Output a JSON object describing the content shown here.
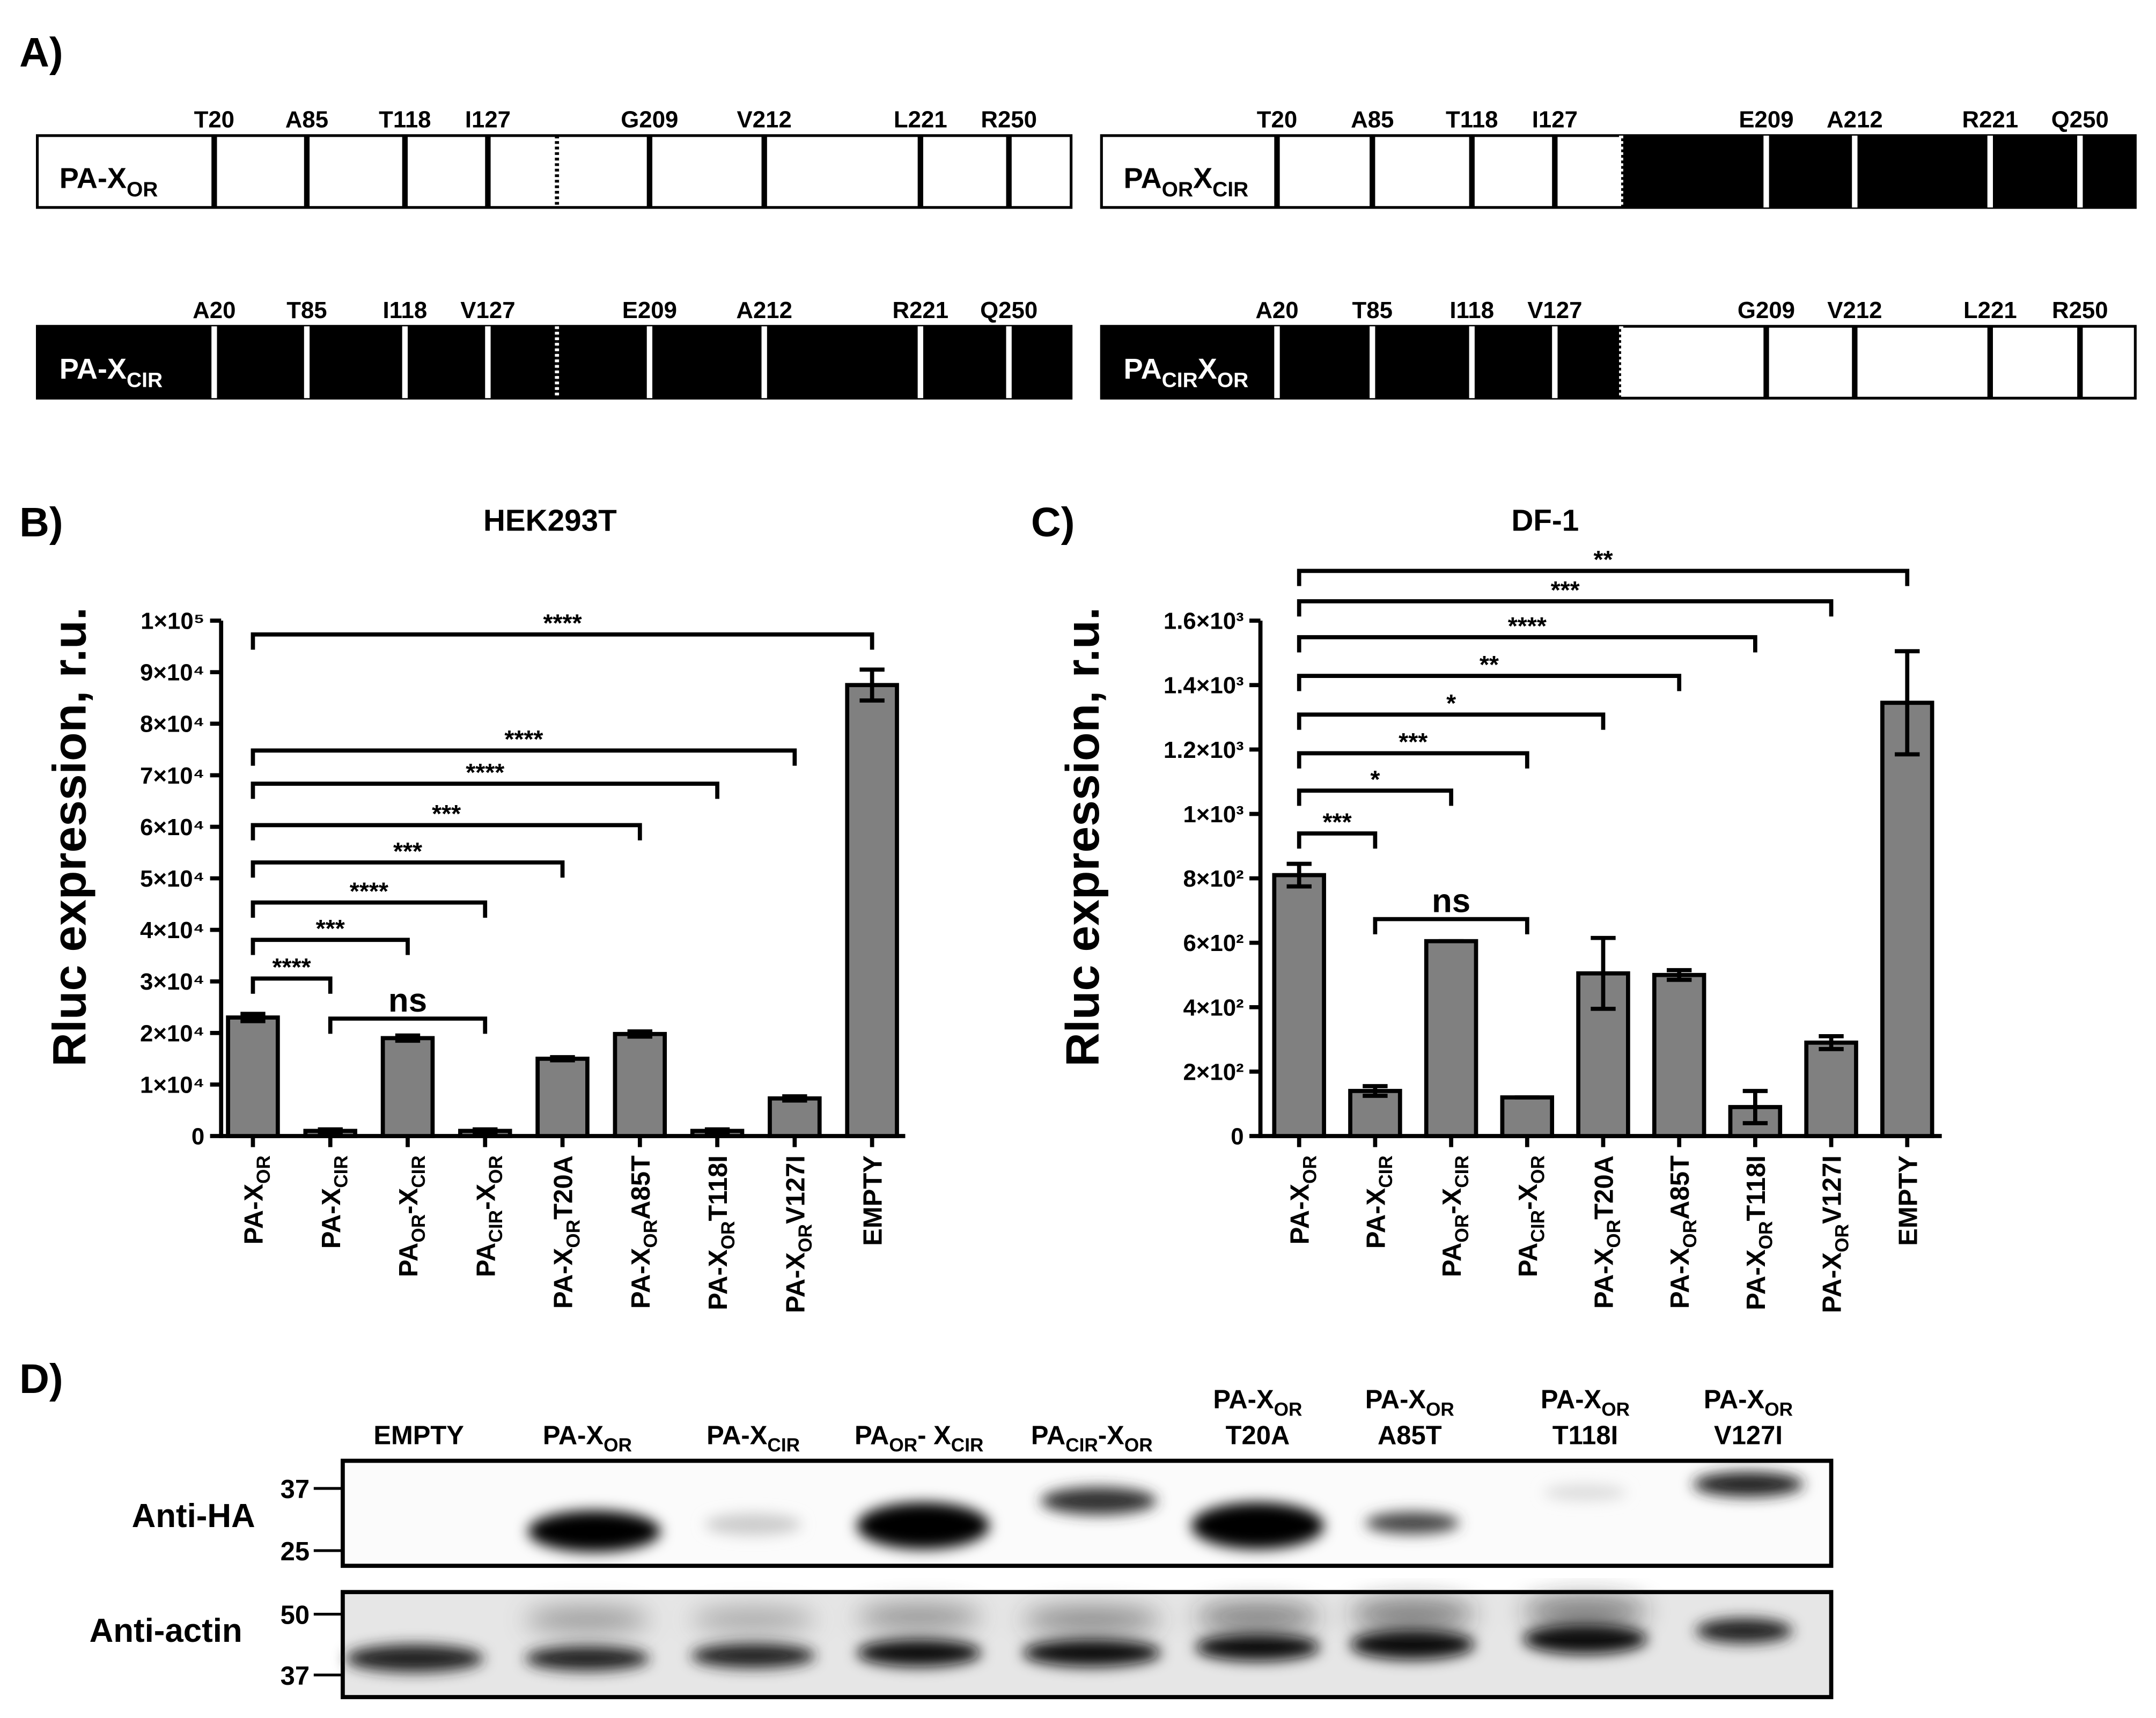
{
  "panel_a": {
    "letter": "A)",
    "constructs": [
      {
        "name": [
          "PA-X",
          "OR"
        ],
        "mutations": [
          "T20",
          "A85",
          "T118",
          "I127",
          "G209",
          "V212",
          "L221",
          "R250"
        ],
        "colors": [
          "#ffffff",
          "#ffffff"
        ]
      },
      {
        "name": [
          "PA",
          "OR",
          "X",
          "CIR"
        ],
        "mutations": [
          "T20",
          "A85",
          "T118",
          "I127",
          "E209",
          "A212",
          "R221",
          "Q250"
        ],
        "colors": [
          "#ffffff",
          "#000000"
        ]
      },
      {
        "name": [
          "PA-X",
          "CIR"
        ],
        "mutations": [
          "A20",
          "T85",
          "I118",
          "V127",
          "E209",
          "A212",
          "R221",
          "Q250"
        ],
        "colors": [
          "#000000",
          "#000000"
        ]
      },
      {
        "name": [
          "PA",
          "CIR",
          "X",
          "OR"
        ],
        "mutations": [
          "A20",
          "T85",
          "I118",
          "V127",
          "G209",
          "V212",
          "L221",
          "R250"
        ],
        "colors": [
          "#000000",
          "#ffffff"
        ]
      }
    ]
  },
  "chart_data": [
    {
      "type": "bar",
      "letter": "B)",
      "title": "HEK293T",
      "y_label": "Rluc expression, r.u.",
      "color": "#808080",
      "categories": [
        [
          "PA-X",
          "OR"
        ],
        [
          "PA-X",
          "CIR"
        ],
        [
          "PA",
          "OR",
          "-X",
          "CIR"
        ],
        [
          "PA",
          "CIR",
          "-X",
          "OR"
        ],
        [
          "PA-X",
          "OR",
          "T20A"
        ],
        [
          "PA-X",
          "OR",
          "A85T"
        ],
        [
          "PA-X",
          "OR",
          "T118I"
        ],
        [
          "PA-X",
          "OR",
          "V127I"
        ],
        [
          "EMPTY"
        ]
      ],
      "values": [
        23000,
        1000,
        19000,
        1000,
        15000,
        19800,
        1000,
        7300,
        87500
      ],
      "errors": [
        700,
        300,
        500,
        300,
        300,
        500,
        300,
        400,
        3000
      ],
      "ylim": [
        0,
        100000
      ],
      "yticks": [
        0,
        {
          "value": 10000,
          "label": "1×10⁴"
        },
        {
          "value": 20000,
          "label": "2×10⁴"
        },
        {
          "value": 30000,
          "label": "3×10⁴"
        },
        {
          "value": 40000,
          "label": "4×10⁴"
        },
        {
          "value": 50000,
          "label": "5×10⁴"
        },
        {
          "value": 60000,
          "label": "6×10⁴"
        },
        {
          "value": 70000,
          "label": "7×10⁴"
        },
        {
          "value": 80000,
          "label": "8×10⁴"
        },
        {
          "value": 90000,
          "label": "9×10⁴"
        },
        {
          "value": 100000,
          "label": "1×10⁵"
        }
      ],
      "comparisons": [
        {
          "groups": [
            0,
            1
          ],
          "label": "****"
        },
        {
          "groups": [
            0,
            2
          ],
          "label": "***"
        },
        {
          "groups": [
            0,
            3
          ],
          "label": "****"
        },
        {
          "groups": [
            0,
            4
          ],
          "label": "***"
        },
        {
          "groups": [
            0,
            5
          ],
          "label": "***"
        },
        {
          "groups": [
            0,
            6
          ],
          "label": "****"
        },
        {
          "groups": [
            0,
            7
          ],
          "label": "****"
        },
        {
          "groups": [
            0,
            8
          ],
          "label": "****"
        },
        {
          "groups": [
            1,
            3
          ],
          "label": "ns"
        }
      ]
    },
    {
      "type": "bar",
      "letter": "C)",
      "title": "DF-1",
      "y_label": "Rluc expression, r.u.",
      "color": "#808080",
      "categories": [
        [
          "PA-X",
          "OR"
        ],
        [
          "PA-X",
          "CIR"
        ],
        [
          "PA",
          "OR",
          "-X",
          "CIR"
        ],
        [
          "PA",
          "CIR",
          "-X",
          "OR"
        ],
        [
          "PA-X",
          "OR",
          "T20A"
        ],
        [
          "PA-X",
          "OR",
          "A85T"
        ],
        [
          "PA-X",
          "OR",
          "T118I"
        ],
        [
          "PA-X",
          "OR",
          "V127I"
        ],
        [
          "EMPTY"
        ]
      ],
      "values": [
        810,
        140,
        605,
        120,
        505,
        500,
        90,
        290,
        1345
      ],
      "errors": [
        35,
        15,
        0,
        0,
        110,
        15,
        50,
        20,
        160
      ],
      "ylim": [
        0,
        1600
      ],
      "yticks": [
        0,
        {
          "value": 200,
          "label": "2×10²"
        },
        {
          "value": 400,
          "label": "4×10²"
        },
        {
          "value": 600,
          "label": "6×10²"
        },
        {
          "value": 800,
          "label": "8×10²"
        },
        {
          "value": 1000,
          "label": "1×10³"
        },
        {
          "value": 1200,
          "label": "1.2×10³"
        },
        {
          "value": 1400,
          "label": "1.4×10³"
        },
        {
          "value": 1600,
          "label": "1.6×10³"
        }
      ],
      "comparisons": [
        {
          "groups": [
            0,
            1
          ],
          "label": "***"
        },
        {
          "groups": [
            0,
            2
          ],
          "label": "*"
        },
        {
          "groups": [
            0,
            3
          ],
          "label": "***"
        },
        {
          "groups": [
            0,
            4
          ],
          "label": "*"
        },
        {
          "groups": [
            0,
            5
          ],
          "label": "**"
        },
        {
          "groups": [
            0,
            6
          ],
          "label": "****"
        },
        {
          "groups": [
            0,
            7
          ],
          "label": "***"
        },
        {
          "groups": [
            0,
            8
          ],
          "label": "**"
        },
        {
          "groups": [
            1,
            3
          ],
          "label": "ns"
        }
      ]
    }
  ],
  "panel_d": {
    "letter": "D)",
    "lanes": [
      [
        [
          "EMPTY"
        ]
      ],
      [
        [
          "PA-X",
          "OR"
        ]
      ],
      [
        [
          "PA-X",
          "CIR"
        ]
      ],
      [
        [
          "PA",
          "OR",
          "- X",
          "CIR"
        ]
      ],
      [
        [
          "PA",
          "CIR",
          "-X",
          "OR"
        ]
      ],
      [
        [
          "PA-X",
          "OR"
        ],
        [
          "T20A"
        ]
      ],
      [
        [
          "PA-X",
          "OR"
        ],
        [
          "A85T"
        ]
      ],
      [
        [
          "PA-X",
          "OR"
        ],
        [
          "T118I"
        ]
      ],
      [
        [
          "PA-X",
          "OR"
        ],
        [
          "V127I"
        ]
      ]
    ],
    "rows": [
      {
        "label": "Anti-HA",
        "markers": [
          37,
          25
        ]
      },
      {
        "label": "Anti-actin",
        "markers": [
          50,
          37
        ]
      }
    ]
  }
}
